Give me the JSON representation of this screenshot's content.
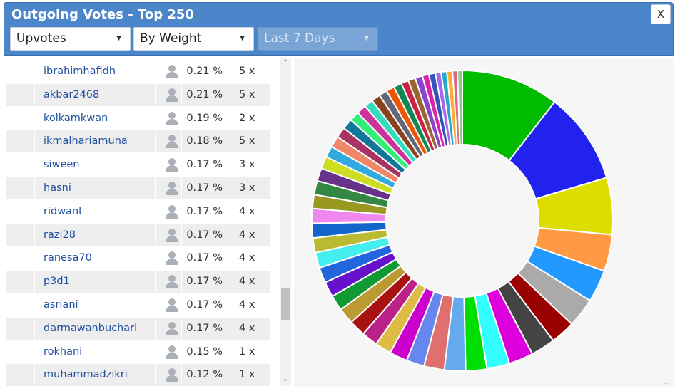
{
  "window": {
    "title": "Outgoing Votes - Top 250",
    "close_label": "X"
  },
  "filters": {
    "vote_type": "Upvotes",
    "sort": "By Weight",
    "period": "Last 7 Days"
  },
  "table": {
    "rows": [
      {
        "name": "ibrahimhafidh",
        "percent": "0.21 %",
        "count": "5 x"
      },
      {
        "name": "akbar2468",
        "percent": "0.21 %",
        "count": "5 x"
      },
      {
        "name": "kolkamkwan",
        "percent": "0.19 %",
        "count": "2 x"
      },
      {
        "name": "ikmalhariamuna",
        "percent": "0.18 %",
        "count": "5 x"
      },
      {
        "name": "siween",
        "percent": "0.17 %",
        "count": "3 x"
      },
      {
        "name": "hasni",
        "percent": "0.17 %",
        "count": "3 x"
      },
      {
        "name": "ridwant",
        "percent": "0.17 %",
        "count": "4 x"
      },
      {
        "name": "razi28",
        "percent": "0.17 %",
        "count": "4 x"
      },
      {
        "name": "ranesa70",
        "percent": "0.17 %",
        "count": "4 x"
      },
      {
        "name": "p3d1",
        "percent": "0.17 %",
        "count": "4 x"
      },
      {
        "name": "asriani",
        "percent": "0.17 %",
        "count": "4 x"
      },
      {
        "name": "darmawanbuchari",
        "percent": "0.17 %",
        "count": "4 x"
      },
      {
        "name": "rokhani",
        "percent": "0.15 %",
        "count": "1 x"
      },
      {
        "name": "muhammadzikri",
        "percent": "0.12 %",
        "count": "1 x"
      }
    ]
  },
  "chart_data": {
    "type": "pie",
    "style": "donut",
    "background": "#f6f6f6",
    "slices": [
      {
        "value": 12.0,
        "color": "#00bb00"
      },
      {
        "value": 11.3,
        "color": "#2222ee"
      },
      {
        "value": 7.0,
        "color": "#dddd00"
      },
      {
        "value": 4.5,
        "color": "#ff9944"
      },
      {
        "value": 4.0,
        "color": "#2299ff"
      },
      {
        "value": 3.6,
        "color": "#aaaaaa"
      },
      {
        "value": 3.0,
        "color": "#990000"
      },
      {
        "value": 3.0,
        "color": "#444444"
      },
      {
        "value": 3.0,
        "color": "#dd00dd"
      },
      {
        "value": 2.8,
        "color": "#33ffff"
      },
      {
        "value": 2.6,
        "color": "#00dd00"
      },
      {
        "value": 2.6,
        "color": "#66aaee"
      },
      {
        "value": 2.5,
        "color": "#e07070"
      },
      {
        "value": 2.2,
        "color": "#6688ee"
      },
      {
        "value": 2.2,
        "color": "#cc00cc"
      },
      {
        "value": 2.0,
        "color": "#ddbb44"
      },
      {
        "value": 2.0,
        "color": "#bb2288"
      },
      {
        "value": 2.0,
        "color": "#aa1111"
      },
      {
        "value": 2.0,
        "color": "#bb9933"
      },
      {
        "value": 1.9,
        "color": "#119933"
      },
      {
        "value": 1.9,
        "color": "#6611cc"
      },
      {
        "value": 1.9,
        "color": "#2266dd"
      },
      {
        "value": 1.9,
        "color": "#44eeee"
      },
      {
        "value": 1.8,
        "color": "#bbbb33"
      },
      {
        "value": 1.8,
        "color": "#1166cc"
      },
      {
        "value": 1.8,
        "color": "#ee88ee"
      },
      {
        "value": 1.7,
        "color": "#999922"
      },
      {
        "value": 1.7,
        "color": "#338844"
      },
      {
        "value": 1.6,
        "color": "#663388"
      },
      {
        "value": 1.5,
        "color": "#ccdd22"
      },
      {
        "value": 1.4,
        "color": "#33aadd"
      },
      {
        "value": 1.4,
        "color": "#ee8866"
      },
      {
        "value": 1.3,
        "color": "#aa3366"
      },
      {
        "value": 1.3,
        "color": "#117799"
      },
      {
        "value": 1.2,
        "color": "#33ee77"
      },
      {
        "value": 1.2,
        "color": "#cc3399"
      },
      {
        "value": 1.1,
        "color": "#33ddbb"
      },
      {
        "value": 1.1,
        "color": "#884422"
      },
      {
        "value": 1.0,
        "color": "#666677"
      },
      {
        "value": 1.0,
        "color": "#ee5500"
      },
      {
        "value": 1.0,
        "color": "#118855"
      },
      {
        "value": 0.9,
        "color": "#cc2244"
      },
      {
        "value": 0.9,
        "color": "#996633"
      },
      {
        "value": 0.9,
        "color": "#8844cc"
      },
      {
        "value": 0.8,
        "color": "#dd22aa"
      },
      {
        "value": 0.8,
        "color": "#3355bb"
      },
      {
        "value": 0.7,
        "color": "#aa66ee"
      },
      {
        "value": 0.7,
        "color": "#22aacc"
      },
      {
        "value": 0.7,
        "color": "#ffaa33"
      },
      {
        "value": 0.6,
        "color": "#dd6688"
      },
      {
        "value": 0.6,
        "color": "#88cc88"
      }
    ]
  }
}
